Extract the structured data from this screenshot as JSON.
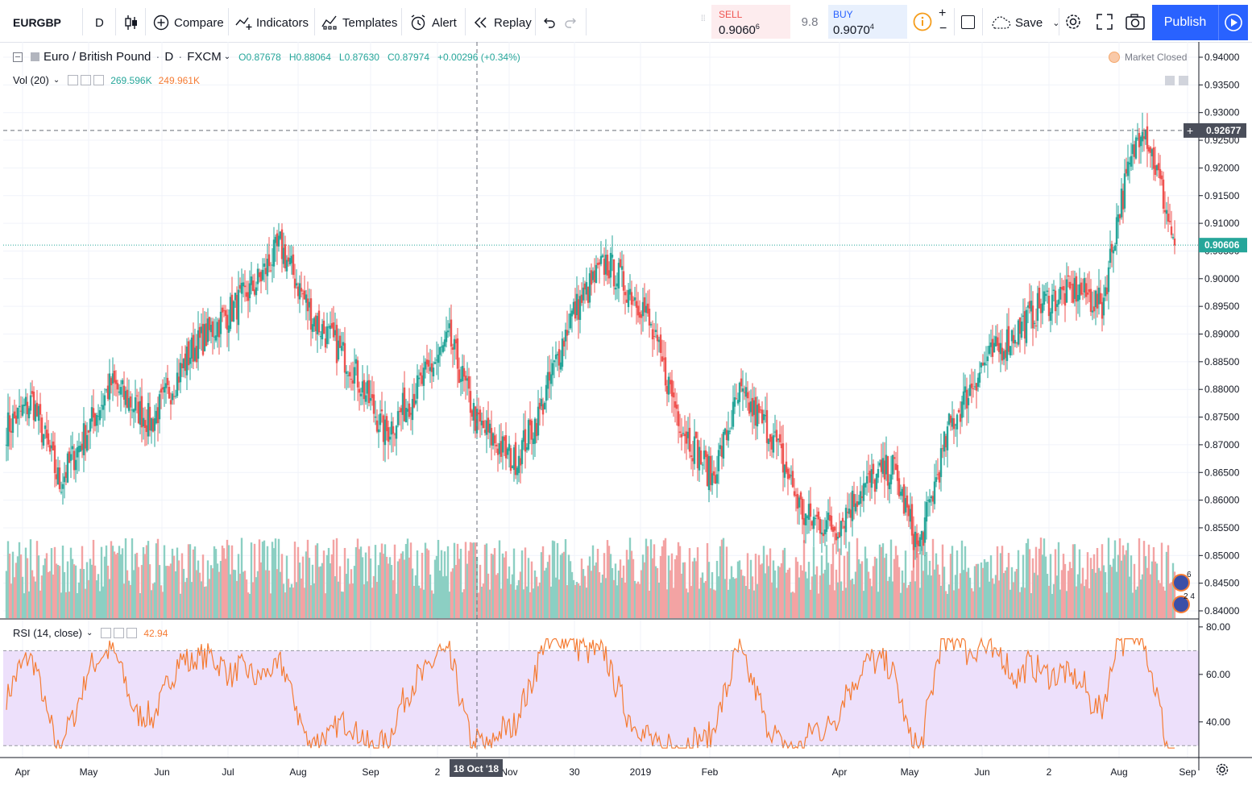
{
  "toolbar": {
    "symbol": "EURGBP",
    "interval": "D",
    "compare": "Compare",
    "indicators": "Indicators",
    "templates": "Templates",
    "alert": "Alert",
    "replay": "Replay",
    "sell_label": "SELL",
    "sell_price": "0.9060",
    "sell_sup": "6",
    "spread": "9.8",
    "buy_label": "BUY",
    "buy_price": "0.9070",
    "buy_sup": "4",
    "save": "Save",
    "publish": "Publish"
  },
  "legend": {
    "name": "Euro / British Pound",
    "interval": "D",
    "source": "FXCM",
    "open": "O0.87678",
    "high": "H0.88064",
    "low": "L0.87630",
    "close": "C0.87974",
    "change": "+0.00296 (+0.34%)",
    "market_status": "Market Closed"
  },
  "volume": {
    "label": "Vol (20)",
    "value1": "269.596K",
    "value2": "249.961K"
  },
  "rsi": {
    "label": "RSI (14, close)",
    "value": "42.94"
  },
  "price_axis": {
    "ticks": [
      "0.94000",
      "0.93500",
      "0.93000",
      "0.92500",
      "0.92000",
      "0.91500",
      "0.91000",
      "0.90500",
      "0.90000",
      "0.89500",
      "0.89000",
      "0.88500",
      "0.88000",
      "0.87500",
      "0.87000",
      "0.86500",
      "0.86000",
      "0.85500",
      "0.85000",
      "0.84500",
      "0.84000"
    ],
    "crosshair_label": "0.92677",
    "last_price_label": "0.90606"
  },
  "rsi_axis": {
    "ticks": [
      "80.00",
      "60.00",
      "40.00"
    ]
  },
  "time_axis": {
    "ticks": [
      "Apr",
      "May",
      "Jun",
      "Jul",
      "Aug",
      "Sep",
      "2",
      "Nov",
      "30",
      "2019",
      "Feb",
      "Apr",
      "May",
      "Jun",
      "2",
      "Aug",
      "Sep"
    ],
    "crosshair_label": "18 Oct '18"
  },
  "events": {
    "badge1": "6",
    "badge2": "2 4"
  },
  "colors": {
    "up": "#26a69a",
    "down": "#ef5350",
    "vol_up": "#8ccfc3",
    "vol_down": "#f3a3a3",
    "rsi_line": "#f57c34",
    "rsi_band": "#ede0fb",
    "publish": "#2962ff"
  },
  "chart_data": {
    "type": "candlestick",
    "symbol": "EURGBP",
    "interval": "D",
    "range": [
      "2018-03",
      "2019-08"
    ],
    "ylim": [
      0.84,
      0.94
    ],
    "rsi_ylim": [
      25,
      82
    ],
    "rsi_bands": [
      30,
      70
    ],
    "crosshair": {
      "date": "18 Oct '18",
      "price": 0.92677
    },
    "last_price": 0.90606,
    "high_low_anchors": [
      {
        "index": 0,
        "close": 0.873
      },
      {
        "index": 16,
        "close": 0.878
      },
      {
        "index": 33,
        "close": 0.863
      },
      {
        "index": 65,
        "close": 0.881
      },
      {
        "index": 90,
        "close": 0.874
      },
      {
        "index": 115,
        "close": 0.887
      },
      {
        "index": 135,
        "close": 0.893
      },
      {
        "index": 155,
        "close": 0.899
      },
      {
        "index": 170,
        "close": 0.906
      },
      {
        "index": 190,
        "close": 0.893
      },
      {
        "index": 215,
        "close": 0.884
      },
      {
        "index": 235,
        "close": 0.872
      },
      {
        "index": 255,
        "close": 0.88
      },
      {
        "index": 275,
        "close": 0.889
      },
      {
        "index": 292,
        "close": 0.874
      },
      {
        "index": 315,
        "close": 0.867
      },
      {
        "index": 330,
        "close": 0.875
      },
      {
        "index": 350,
        "close": 0.893
      },
      {
        "index": 372,
        "close": 0.903
      },
      {
        "index": 395,
        "close": 0.895
      },
      {
        "index": 420,
        "close": 0.873
      },
      {
        "index": 438,
        "close": 0.864
      },
      {
        "index": 455,
        "close": 0.879
      },
      {
        "index": 475,
        "close": 0.872
      },
      {
        "index": 495,
        "close": 0.857
      },
      {
        "index": 515,
        "close": 0.855
      },
      {
        "index": 530,
        "close": 0.862
      },
      {
        "index": 550,
        "close": 0.866
      },
      {
        "index": 566,
        "close": 0.851
      },
      {
        "index": 585,
        "close": 0.873
      },
      {
        "index": 605,
        "close": 0.884
      },
      {
        "index": 625,
        "close": 0.89
      },
      {
        "index": 645,
        "close": 0.896
      },
      {
        "index": 665,
        "close": 0.898
      },
      {
        "index": 680,
        "close": 0.895
      },
      {
        "index": 690,
        "close": 0.912
      },
      {
        "index": 705,
        "close": 0.929
      },
      {
        "index": 716,
        "close": 0.917
      },
      {
        "index": 725,
        "close": 0.906
      }
    ]
  }
}
